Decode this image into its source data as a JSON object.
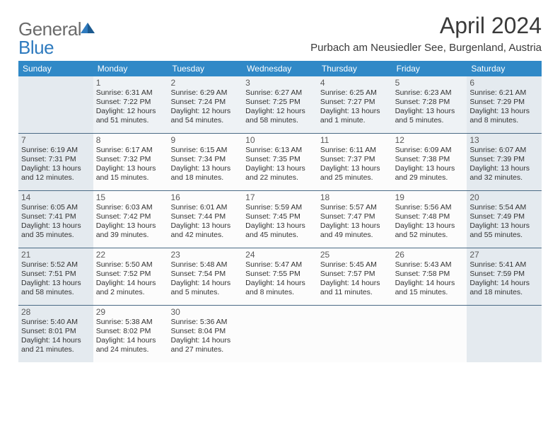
{
  "logo": {
    "part1": "General",
    "part2": "Blue"
  },
  "title": "April 2024",
  "location": "Purbach am Neusiedler See, Burgenland, Austria",
  "colors": {
    "header_bg": "#3089c7",
    "header_text": "#ffffff",
    "logo_gray": "#6b6b6b",
    "logo_blue": "#2f7bbf",
    "row_border": "#4a6a85",
    "cell_bg": "#fcfcfc",
    "shaded_light": "#eef2f5",
    "shaded_dark": "#e4eaef"
  },
  "day_names": [
    "Sunday",
    "Monday",
    "Tuesday",
    "Wednesday",
    "Thursday",
    "Friday",
    "Saturday"
  ],
  "weeks": [
    [
      {
        "n": "",
        "lines": []
      },
      {
        "n": "1",
        "lines": [
          "Sunrise: 6:31 AM",
          "Sunset: 7:22 PM",
          "Daylight: 12 hours",
          "and 51 minutes."
        ]
      },
      {
        "n": "2",
        "lines": [
          "Sunrise: 6:29 AM",
          "Sunset: 7:24 PM",
          "Daylight: 12 hours",
          "and 54 minutes."
        ]
      },
      {
        "n": "3",
        "lines": [
          "Sunrise: 6:27 AM",
          "Sunset: 7:25 PM",
          "Daylight: 12 hours",
          "and 58 minutes."
        ]
      },
      {
        "n": "4",
        "lines": [
          "Sunrise: 6:25 AM",
          "Sunset: 7:27 PM",
          "Daylight: 13 hours",
          "and 1 minute."
        ]
      },
      {
        "n": "5",
        "lines": [
          "Sunrise: 6:23 AM",
          "Sunset: 7:28 PM",
          "Daylight: 13 hours",
          "and 5 minutes."
        ]
      },
      {
        "n": "6",
        "lines": [
          "Sunrise: 6:21 AM",
          "Sunset: 7:29 PM",
          "Daylight: 13 hours",
          "and 8 minutes."
        ]
      }
    ],
    [
      {
        "n": "7",
        "lines": [
          "Sunrise: 6:19 AM",
          "Sunset: 7:31 PM",
          "Daylight: 13 hours",
          "and 12 minutes."
        ]
      },
      {
        "n": "8",
        "lines": [
          "Sunrise: 6:17 AM",
          "Sunset: 7:32 PM",
          "Daylight: 13 hours",
          "and 15 minutes."
        ]
      },
      {
        "n": "9",
        "lines": [
          "Sunrise: 6:15 AM",
          "Sunset: 7:34 PM",
          "Daylight: 13 hours",
          "and 18 minutes."
        ]
      },
      {
        "n": "10",
        "lines": [
          "Sunrise: 6:13 AM",
          "Sunset: 7:35 PM",
          "Daylight: 13 hours",
          "and 22 minutes."
        ]
      },
      {
        "n": "11",
        "lines": [
          "Sunrise: 6:11 AM",
          "Sunset: 7:37 PM",
          "Daylight: 13 hours",
          "and 25 minutes."
        ]
      },
      {
        "n": "12",
        "lines": [
          "Sunrise: 6:09 AM",
          "Sunset: 7:38 PM",
          "Daylight: 13 hours",
          "and 29 minutes."
        ]
      },
      {
        "n": "13",
        "lines": [
          "Sunrise: 6:07 AM",
          "Sunset: 7:39 PM",
          "Daylight: 13 hours",
          "and 32 minutes."
        ]
      }
    ],
    [
      {
        "n": "14",
        "lines": [
          "Sunrise: 6:05 AM",
          "Sunset: 7:41 PM",
          "Daylight: 13 hours",
          "and 35 minutes."
        ]
      },
      {
        "n": "15",
        "lines": [
          "Sunrise: 6:03 AM",
          "Sunset: 7:42 PM",
          "Daylight: 13 hours",
          "and 39 minutes."
        ]
      },
      {
        "n": "16",
        "lines": [
          "Sunrise: 6:01 AM",
          "Sunset: 7:44 PM",
          "Daylight: 13 hours",
          "and 42 minutes."
        ]
      },
      {
        "n": "17",
        "lines": [
          "Sunrise: 5:59 AM",
          "Sunset: 7:45 PM",
          "Daylight: 13 hours",
          "and 45 minutes."
        ]
      },
      {
        "n": "18",
        "lines": [
          "Sunrise: 5:57 AM",
          "Sunset: 7:47 PM",
          "Daylight: 13 hours",
          "and 49 minutes."
        ]
      },
      {
        "n": "19",
        "lines": [
          "Sunrise: 5:56 AM",
          "Sunset: 7:48 PM",
          "Daylight: 13 hours",
          "and 52 minutes."
        ]
      },
      {
        "n": "20",
        "lines": [
          "Sunrise: 5:54 AM",
          "Sunset: 7:49 PM",
          "Daylight: 13 hours",
          "and 55 minutes."
        ]
      }
    ],
    [
      {
        "n": "21",
        "lines": [
          "Sunrise: 5:52 AM",
          "Sunset: 7:51 PM",
          "Daylight: 13 hours",
          "and 58 minutes."
        ]
      },
      {
        "n": "22",
        "lines": [
          "Sunrise: 5:50 AM",
          "Sunset: 7:52 PM",
          "Daylight: 14 hours",
          "and 2 minutes."
        ]
      },
      {
        "n": "23",
        "lines": [
          "Sunrise: 5:48 AM",
          "Sunset: 7:54 PM",
          "Daylight: 14 hours",
          "and 5 minutes."
        ]
      },
      {
        "n": "24",
        "lines": [
          "Sunrise: 5:47 AM",
          "Sunset: 7:55 PM",
          "Daylight: 14 hours",
          "and 8 minutes."
        ]
      },
      {
        "n": "25",
        "lines": [
          "Sunrise: 5:45 AM",
          "Sunset: 7:57 PM",
          "Daylight: 14 hours",
          "and 11 minutes."
        ]
      },
      {
        "n": "26",
        "lines": [
          "Sunrise: 5:43 AM",
          "Sunset: 7:58 PM",
          "Daylight: 14 hours",
          "and 15 minutes."
        ]
      },
      {
        "n": "27",
        "lines": [
          "Sunrise: 5:41 AM",
          "Sunset: 7:59 PM",
          "Daylight: 14 hours",
          "and 18 minutes."
        ]
      }
    ],
    [
      {
        "n": "28",
        "lines": [
          "Sunrise: 5:40 AM",
          "Sunset: 8:01 PM",
          "Daylight: 14 hours",
          "and 21 minutes."
        ]
      },
      {
        "n": "29",
        "lines": [
          "Sunrise: 5:38 AM",
          "Sunset: 8:02 PM",
          "Daylight: 14 hours",
          "and 24 minutes."
        ]
      },
      {
        "n": "30",
        "lines": [
          "Sunrise: 5:36 AM",
          "Sunset: 8:04 PM",
          "Daylight: 14 hours",
          "and 27 minutes."
        ]
      },
      {
        "n": "",
        "lines": []
      },
      {
        "n": "",
        "lines": []
      },
      {
        "n": "",
        "lines": []
      },
      {
        "n": "",
        "lines": []
      }
    ]
  ]
}
